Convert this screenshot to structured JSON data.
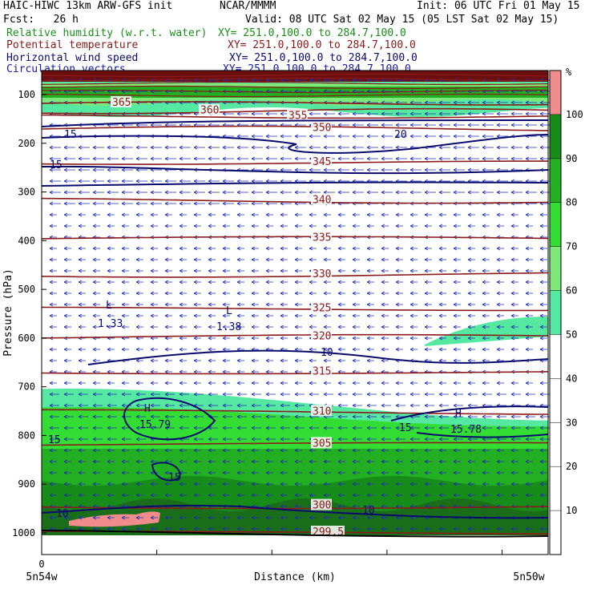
{
  "header": {
    "title": "HAIC-HIWC 13km ARW-GFS init",
    "center": "NCAR/MMMM",
    "init": "Init: 06 UTC Fri 01 May 15",
    "fcst": "Fcst:   26 h",
    "valid": "Valid: 08 UTC Sat 02 May 15 (05 LST Sat 02 May 15)"
  },
  "fields": [
    {
      "label": "Relative humidity (w.r.t. water)",
      "xy": "XY= 251.0,100.0 to 284.7,100.0",
      "color": "#1a8f1a"
    },
    {
      "label": "Potential temperature",
      "xy": "XY= 251.0,100.0 to 284.7,100.0",
      "color": "#8b1a1a"
    },
    {
      "label": "Horizontal wind speed",
      "xy": "XY= 251.0,100.0 to 284.7,100.0",
      "color": "#0a0a6e"
    },
    {
      "label": "Circulation vectors",
      "xy": "XY= 251.0,100.0 to 284.7,100.0",
      "color": "#1a1aa0"
    }
  ],
  "chart_data": {
    "type": "heatmap",
    "xlabel": "Distance (km)",
    "ylabel": "Pressure (hPa)",
    "x_tick_labels": [
      "0"
    ],
    "x_end_labels": [
      "5n54w",
      "5n50w"
    ],
    "y_ticks": [
      100,
      200,
      300,
      400,
      500,
      600,
      700,
      800,
      900,
      1000
    ],
    "ylim": [
      1050,
      70
    ],
    "colorbar": {
      "unit": "%",
      "ticks": [
        10,
        20,
        30,
        40,
        50,
        60,
        70,
        80,
        90,
        100
      ],
      "levels": [
        {
          "from": 0,
          "to": 50,
          "color": "#ffffff"
        },
        {
          "from": 50,
          "to": 60,
          "color": "#55e8a0"
        },
        {
          "from": 60,
          "to": 70,
          "color": "#7ee87a"
        },
        {
          "from": 70,
          "to": 80,
          "color": "#33dd33"
        },
        {
          "from": 80,
          "to": 90,
          "color": "#22b022"
        },
        {
          "from": 90,
          "to": 100,
          "color": "#188c18"
        },
        {
          "from": 100,
          "to": 110,
          "color": "#f08c8c"
        }
      ]
    },
    "theta_contours": [
      {
        "label": "365",
        "p": 118
      },
      {
        "label": "360",
        "p": 134
      },
      {
        "label": "355",
        "p": 145
      },
      {
        "label": "350",
        "p": 170
      },
      {
        "label": "345",
        "p": 240
      },
      {
        "label": "340",
        "p": 318
      },
      {
        "label": "335",
        "p": 395
      },
      {
        "label": "330",
        "p": 470
      },
      {
        "label": "325",
        "p": 540
      },
      {
        "label": "320",
        "p": 598
      },
      {
        "label": "315",
        "p": 670
      },
      {
        "label": "310",
        "p": 752
      },
      {
        "label": "305",
        "p": 818
      },
      {
        "label": "300",
        "p": 945
      },
      {
        "label": "299.5",
        "p": 1000
      }
    ],
    "wind_speed_labels": [
      {
        "label": "15",
        "p": 178
      },
      {
        "label": "20",
        "p": 178
      },
      {
        "label": "15",
        "p": 245
      },
      {
        "label": "10",
        "p": 640
      },
      {
        "label": "15",
        "p": 810
      },
      {
        "label": "15",
        "p": 792
      },
      {
        "label": "15",
        "p": 885
      },
      {
        "label": "10",
        "p": 945
      },
      {
        "label": "10",
        "p": 960
      }
    ],
    "extrema": [
      {
        "type": "L",
        "value": "1.33",
        "p": 560
      },
      {
        "type": "L",
        "value": "1.38",
        "p": 568
      },
      {
        "type": "H",
        "value": "15.79",
        "p": 775
      },
      {
        "type": "H",
        "value": "15.78",
        "p": 777
      }
    ],
    "other_labels": [
      "350",
      "L",
      "0"
    ]
  }
}
